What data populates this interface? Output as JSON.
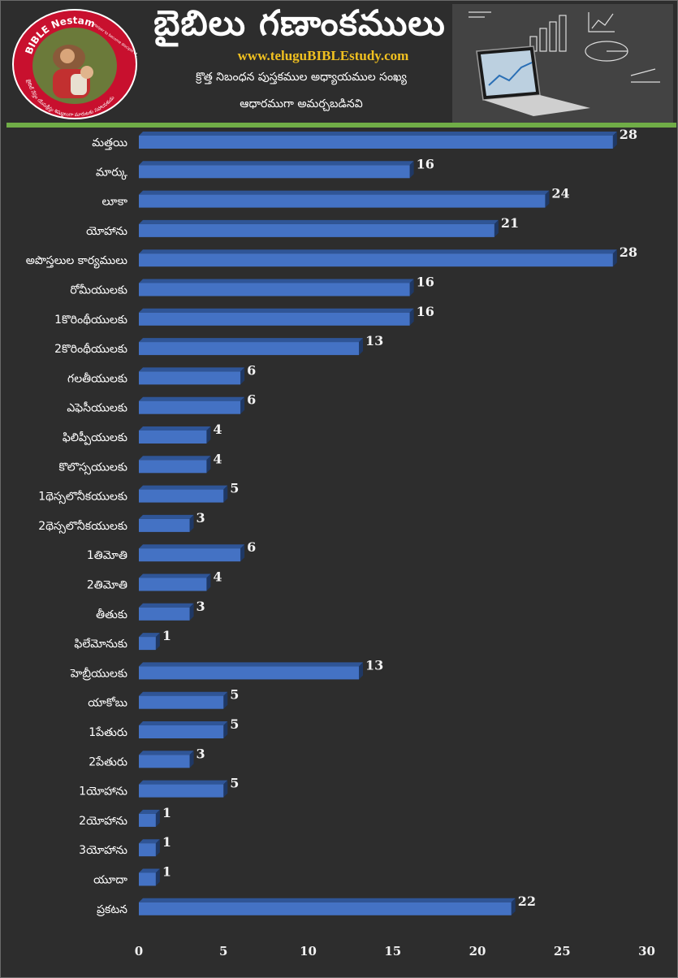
{
  "header": {
    "title": "బైబిలు గణాంకములు",
    "url": "www.teluguBIBLEstudy.com",
    "subtitle_line1": "క్రొత్త నిబంధన పుస్తకముల అధ్యాయముల సంఖ్య",
    "subtitle_line2": "ఆధారముగా అమర్చబడినవి",
    "logo": {
      "text_top": "BIBLE Nestam",
      "text_right": "Helper to become disciple of JESUS CHRIST",
      "text_bottom": "బైబిల్ నేస్తం యేసుక్రీస్తు శిష్యులుగా మారుటకు సహాయకుడు"
    }
  },
  "colors": {
    "background": "#2d2d2d",
    "bar_front": "#4472c4",
    "bar_top": "#2f5597",
    "bar_side": "#1f3864",
    "accent_rule": "#70ad47",
    "url_color": "#f0c020"
  },
  "chart_data": {
    "type": "bar",
    "orientation": "horizontal",
    "categories": [
      "మత్తయి",
      "మార్కు",
      "లూకా",
      "యోహాను",
      "అపొస్తలుల కార్యములు",
      "రోమీయులకు",
      "1కొరింథీయులకు",
      "2కొరింథీయులకు",
      "గలతీయులకు",
      "ఎఫెసీయులకు",
      "ఫిలిప్పీయులకు",
      "కొలొస్సయులకు",
      "1థెస్సలొనీకయులకు",
      "2థెస్సలొనీకయులకు",
      "1తిమోతి",
      "2తిమోతి",
      "తీతుకు",
      "ఫిలేమోనుకు",
      "హెబ్రీయులకు",
      "యాకోబు",
      "1పేతురు",
      "2పేతురు",
      "1యోహాను",
      "2యోహాను",
      "3యోహాను",
      "యూదా",
      "ప్రకటన"
    ],
    "values": [
      28,
      16,
      24,
      21,
      28,
      16,
      16,
      13,
      6,
      6,
      4,
      4,
      5,
      3,
      6,
      4,
      3,
      1,
      13,
      5,
      5,
      3,
      5,
      1,
      1,
      1,
      22
    ],
    "xlim": [
      0,
      30
    ],
    "xticks": [
      0,
      5,
      10,
      15,
      20,
      25,
      30
    ],
    "grid": false,
    "data_labels": true
  }
}
